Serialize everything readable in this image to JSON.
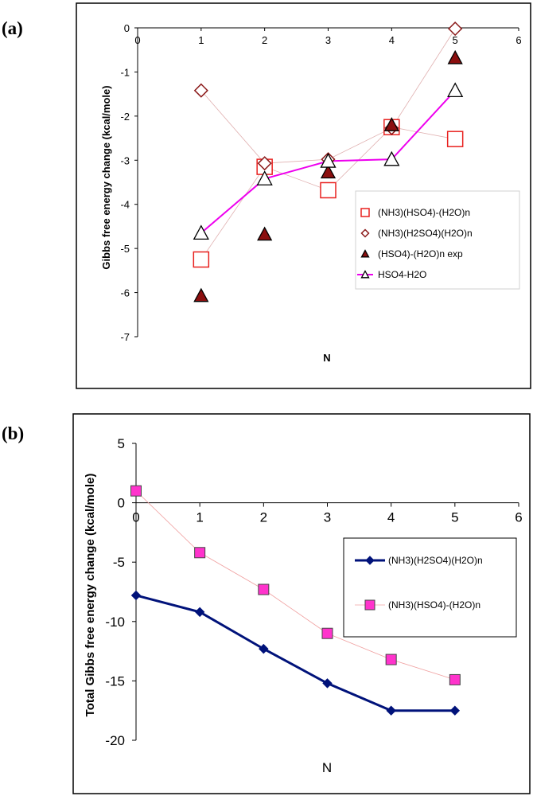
{
  "chart_data": [
    {
      "panel": "(a)",
      "type": "scatter",
      "xlabel": "N",
      "ylabel": "Gibbs free energy change (kcal/mole)",
      "xlim": [
        0,
        6
      ],
      "ylim": [
        -7,
        0
      ],
      "x_ticks": [
        0,
        1,
        2,
        3,
        4,
        5,
        6
      ],
      "y_ticks": [
        0,
        -1,
        -2,
        -3,
        -4,
        -5,
        -6,
        -7
      ],
      "x_tick_labels": [
        "0",
        "1",
        "2",
        "3",
        "4",
        "5",
        "6"
      ],
      "y_tick_labels": [
        "0",
        "-1",
        "-2",
        "-3",
        "-4",
        "-5",
        "-6",
        "-7"
      ],
      "legend_position": "right",
      "series": [
        {
          "name": "(NH3)(HSO4)-(H2O)n",
          "marker": "open-square",
          "color": "#e8201e",
          "line": "thin",
          "x": [
            1,
            2,
            3,
            4,
            5
          ],
          "y": [
            -5.25,
            -3.15,
            -3.68,
            -2.25,
            -2.52
          ]
        },
        {
          "name": "(NH3)(H2SO4)(H2O)n",
          "marker": "open-diamond",
          "color": "#8b1a1a",
          "line": "thin",
          "x": [
            1,
            2,
            3,
            4,
            5
          ],
          "y": [
            -1.42,
            -3.07,
            -2.98,
            -2.27,
            -0.02
          ]
        },
        {
          "name": "(HSO4)-(H2O)n exp",
          "marker": "filled-triangle",
          "color": "#8b0f0f",
          "line": "none",
          "x": [
            1,
            2,
            3,
            4,
            5
          ],
          "y": [
            -6.07,
            -4.68,
            -3.27,
            -2.2,
            -0.68
          ]
        },
        {
          "name": "HSO4-H2O",
          "marker": "open-triangle",
          "color": "#ee00ee",
          "line": "thick",
          "x": [
            1,
            2,
            3,
            4,
            5
          ],
          "y": [
            -4.65,
            -3.42,
            -3.02,
            -2.98,
            -1.42
          ]
        }
      ]
    },
    {
      "panel": "(b)",
      "type": "line",
      "xlabel": "N",
      "ylabel": "Total Gibbs free energy change (kcal/mole)",
      "xlim": [
        0,
        6
      ],
      "ylim": [
        -20,
        5
      ],
      "x_ticks": [
        0,
        1,
        2,
        3,
        4,
        5,
        6
      ],
      "y_ticks": [
        5,
        0,
        -5,
        -10,
        -15,
        -20
      ],
      "x_tick_labels": [
        "0",
        "1",
        "2",
        "3",
        "4",
        "5",
        "6"
      ],
      "y_tick_labels": [
        "5",
        "0",
        "-5",
        "-10",
        "-15",
        "-20"
      ],
      "legend_position": "right",
      "series": [
        {
          "name": "(NH3)(H2SO4)(H2O)n",
          "marker": "filled-diamond",
          "color": "#00127a",
          "line": "thick",
          "x": [
            0,
            1,
            2,
            3,
            4,
            5
          ],
          "y": [
            -7.8,
            -9.2,
            -12.3,
            -15.2,
            -17.5,
            -17.5
          ]
        },
        {
          "name": "(NH3)(HSO4)-(H2O)n",
          "marker": "filled-square",
          "color": "#ff33cc",
          "line": "thin",
          "x": [
            0,
            1,
            2,
            3,
            4,
            5
          ],
          "y": [
            1.0,
            -4.2,
            -7.3,
            -11.0,
            -13.2,
            -14.9
          ]
        }
      ]
    }
  ]
}
